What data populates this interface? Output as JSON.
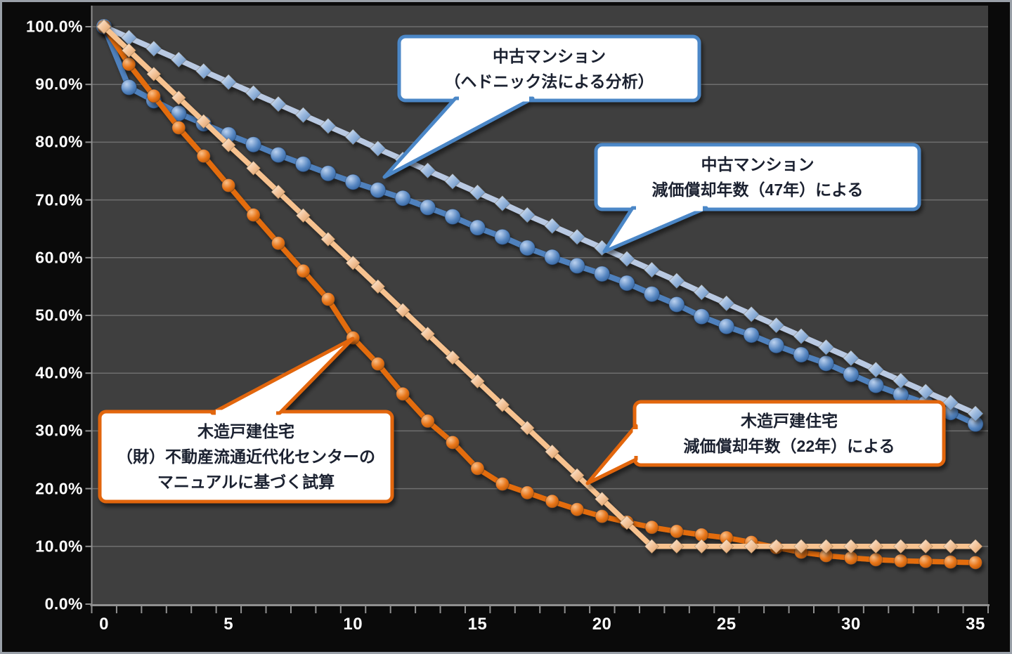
{
  "chart_data": {
    "type": "line",
    "title": "",
    "xlabel": "",
    "ylabel": "",
    "x_unit": "years",
    "x": [
      0,
      1,
      2,
      3,
      4,
      5,
      6,
      7,
      8,
      9,
      10,
      11,
      12,
      13,
      14,
      15,
      16,
      17,
      18,
      19,
      20,
      21,
      22,
      23,
      24,
      25,
      26,
      27,
      28,
      29,
      30,
      31,
      32,
      33,
      34,
      35
    ],
    "x_tick_labels": [
      "0",
      "5",
      "10",
      "15",
      "20",
      "25",
      "30",
      "35"
    ],
    "y_tick_labels": [
      "0.0%",
      "10.0%",
      "20.0%",
      "30.0%",
      "40.0%",
      "50.0%",
      "60.0%",
      "70.0%",
      "80.0%",
      "90.0%",
      "100.0%"
    ],
    "ylim": [
      0,
      100
    ],
    "grid": "horizontal",
    "legend": "none (callout labels on plot)",
    "series": [
      {
        "name": "中古マンション（ヘドニック法による分析）",
        "marker": "circle",
        "line_color": "#4f81bd",
        "values": [
          100,
          89.5,
          87.2,
          85.0,
          83.2,
          81.3,
          79.6,
          77.8,
          76.2,
          74.6,
          73.1,
          71.7,
          70.3,
          68.7,
          67.1,
          65.2,
          63.6,
          61.7,
          60.1,
          58.6,
          57.2,
          55.6,
          53.7,
          51.9,
          49.8,
          48.1,
          46.6,
          44.8,
          43.2,
          41.7,
          39.8,
          37.9,
          36.3,
          34.8,
          33.2,
          31.2
        ]
      },
      {
        "name": "中古マンション 減価償却年数（47年）による",
        "marker": "diamond",
        "line_color": "#b9c9e2",
        "values": [
          100,
          98.1,
          96.2,
          94.3,
          92.3,
          90.4,
          88.5,
          86.6,
          84.7,
          82.8,
          80.9,
          78.9,
          77.0,
          75.1,
          73.2,
          71.3,
          69.4,
          67.4,
          65.5,
          63.6,
          61.7,
          59.8,
          57.9,
          56.0,
          54.0,
          52.1,
          50.2,
          48.3,
          46.4,
          44.5,
          42.6,
          40.6,
          38.7,
          36.8,
          34.9,
          33.0
        ]
      },
      {
        "name": "木造戸建住宅（財）不動産流通近代化センターのマニュアルに基づく試算",
        "marker": "circle",
        "line_color": "#e36c09",
        "values": [
          100,
          93.5,
          88.0,
          82.5,
          77.6,
          72.5,
          67.4,
          62.5,
          57.7,
          52.8,
          46.1,
          41.6,
          36.4,
          31.7,
          28.0,
          23.5,
          20.8,
          19.3,
          17.8,
          16.4,
          15.2,
          14.2,
          13.3,
          12.6,
          12.0,
          11.5,
          10.7,
          9.8,
          9.0,
          8.4,
          8.0,
          7.7,
          7.5,
          7.4,
          7.3,
          7.2
        ]
      },
      {
        "name": "木造戸建住宅 減価償却年数（22年）による",
        "marker": "diamond",
        "line_color": "#f7c28f",
        "values": [
          100,
          95.9,
          91.8,
          87.7,
          83.6,
          79.5,
          75.5,
          71.4,
          67.3,
          63.2,
          59.1,
          55.0,
          50.9,
          46.8,
          42.7,
          38.6,
          34.5,
          30.5,
          26.4,
          22.3,
          18.2,
          14.1,
          10.0,
          10.0,
          10.0,
          10.0,
          10.0,
          10.0,
          10.0,
          10.0,
          10.0,
          10.0,
          10.0,
          10.0,
          10.0,
          10.0
        ]
      }
    ],
    "colors": {
      "outer_background": "#0a0a0a",
      "plot_background": "#3f3f3f",
      "gridline": "#6f6f6f",
      "axis_line": "#909090",
      "tick_text": "#ffffff",
      "callout_blue_border": "#4c87c7",
      "callout_orange_border": "#e2660a",
      "callout_fill": "#ffffff",
      "frame_border": "#9aa0a8"
    }
  },
  "callouts": [
    {
      "lines": [
        "中古マンション",
        "（ヘドニック法による分析）"
      ]
    },
    {
      "lines": [
        "中古マンション",
        "減価償却年数（47年）による"
      ]
    },
    {
      "lines": [
        "木造戸建住宅",
        "（財）不動産流通近代化センターの",
        "マニュアルに基づく試算"
      ]
    },
    {
      "lines": [
        "木造戸建住宅",
        "減価償却年数（22年）による"
      ]
    }
  ]
}
